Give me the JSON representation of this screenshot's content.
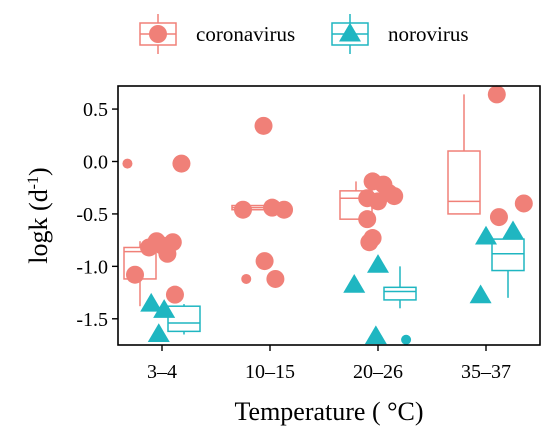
{
  "chart_data": {
    "type": "box-scatter",
    "categories": [
      "3–4",
      "10–15",
      "20–26",
      "35–37"
    ],
    "xlabel": "Temperature ( °C)",
    "ylabel": {
      "base": "logk (d",
      "sup": "-1",
      "end": ")"
    },
    "ylim": [
      -1.75,
      0.72
    ],
    "yticks": [
      0.5,
      0.0,
      -0.5,
      -1.0,
      -1.5
    ],
    "ytick_labels": [
      "0.5",
      "0.0",
      "-0.5",
      "-1.0",
      "-1.5"
    ],
    "grid": false,
    "legend_position": "top",
    "series": [
      {
        "name": "coronavirus",
        "color": "#f08078",
        "marker": "circle",
        "boxes": [
          {
            "category": "3–4",
            "min": -1.38,
            "q1": -1.12,
            "median": -0.86,
            "q3": -0.82,
            "max": -0.76
          },
          {
            "category": "10–15",
            "min": -0.46,
            "q1": -0.46,
            "median": -0.44,
            "q3": -0.42,
            "max": -0.42
          },
          {
            "category": "20–26",
            "min": -0.55,
            "q1": -0.55,
            "median": -0.35,
            "q3": -0.28,
            "max": -0.19
          },
          {
            "category": "35–37",
            "min": -0.5,
            "q1": -0.5,
            "median": -0.38,
            "q3": 0.1,
            "max": 0.64
          }
        ],
        "points": [
          {
            "category": "3–4",
            "offset": -0.32,
            "y": -0.02,
            "size": 5
          },
          {
            "category": "3–4",
            "offset": 0.18,
            "y": -0.02,
            "size": 9
          },
          {
            "category": "3–4",
            "offset": -0.05,
            "y": -0.76,
            "size": 9
          },
          {
            "category": "3–4",
            "offset": 0.1,
            "y": -0.77,
            "size": 9
          },
          {
            "category": "3–4",
            "offset": 0.0,
            "y": -0.8,
            "size": 9
          },
          {
            "category": "3–4",
            "offset": -0.12,
            "y": -0.82,
            "size": 9
          },
          {
            "category": "3–4",
            "offset": 0.05,
            "y": -0.88,
            "size": 9
          },
          {
            "category": "3–4",
            "offset": -0.25,
            "y": -1.08,
            "size": 9
          },
          {
            "category": "3–4",
            "offset": 0.12,
            "y": -1.27,
            "size": 9
          },
          {
            "category": "10–15",
            "offset": -0.06,
            "y": 0.34,
            "size": 9
          },
          {
            "category": "10–15",
            "offset": -0.25,
            "y": -0.46,
            "size": 9
          },
          {
            "category": "10–15",
            "offset": 0.02,
            "y": -0.44,
            "size": 9
          },
          {
            "category": "10–15",
            "offset": 0.13,
            "y": -0.46,
            "size": 9
          },
          {
            "category": "10–15",
            "offset": -0.05,
            "y": -0.95,
            "size": 9
          },
          {
            "category": "10–15",
            "offset": -0.22,
            "y": -1.12,
            "size": 5
          },
          {
            "category": "10–15",
            "offset": 0.05,
            "y": -1.12,
            "size": 9
          },
          {
            "category": "20–26",
            "offset": -0.05,
            "y": -0.19,
            "size": 9
          },
          {
            "category": "20–26",
            "offset": 0.05,
            "y": -0.22,
            "size": 9
          },
          {
            "category": "20–26",
            "offset": 0.1,
            "y": -0.3,
            "size": 9
          },
          {
            "category": "20–26",
            "offset": -0.1,
            "y": -0.35,
            "size": 9
          },
          {
            "category": "20–26",
            "offset": 0.15,
            "y": -0.33,
            "size": 9
          },
          {
            "category": "20–26",
            "offset": 0.0,
            "y": -0.38,
            "size": 9
          },
          {
            "category": "20–26",
            "offset": -0.1,
            "y": -0.55,
            "size": 9
          },
          {
            "category": "20–26",
            "offset": -0.05,
            "y": -0.73,
            "size": 9
          },
          {
            "category": "20–26",
            "offset": -0.08,
            "y": -0.77,
            "size": 9
          },
          {
            "category": "35–37",
            "offset": 0.1,
            "y": 0.64,
            "size": 9
          },
          {
            "category": "35–37",
            "offset": 0.12,
            "y": -0.53,
            "size": 9
          },
          {
            "category": "35–37",
            "offset": 0.35,
            "y": -0.4,
            "size": 9
          }
        ]
      },
      {
        "name": "norovirus",
        "color": "#1fb6c1",
        "marker": "triangle",
        "boxes": [
          {
            "category": "3–4",
            "min": -1.65,
            "q1": -1.62,
            "median": -1.54,
            "q3": -1.38,
            "max": -1.36
          },
          {
            "category": "20–26",
            "min": -1.4,
            "q1": -1.32,
            "median": -1.24,
            "q3": -1.2,
            "max": -1.0
          },
          {
            "category": "35–37",
            "min": -1.3,
            "q1": -1.04,
            "median": -0.88,
            "q3": -0.74,
            "max": -0.7
          }
        ],
        "points": [
          {
            "category": "3–4",
            "offset": -0.1,
            "y": -1.36,
            "size": 11
          },
          {
            "category": "3–4",
            "offset": 0.02,
            "y": -1.42,
            "size": 11
          },
          {
            "category": "3–4",
            "offset": -0.03,
            "y": -1.65,
            "size": 11
          },
          {
            "category": "20–26",
            "offset": -0.22,
            "y": -1.18,
            "size": 11
          },
          {
            "category": "20–26",
            "offset": 0.0,
            "y": -0.99,
            "size": 11
          },
          {
            "category": "20–26",
            "offset": -0.02,
            "y": -1.67,
            "size": 11
          },
          {
            "category": "20–26",
            "offset": 0.26,
            "y": -1.7,
            "size": 5
          },
          {
            "category": "35–37",
            "offset": -0.05,
            "y": -1.28,
            "size": 11
          },
          {
            "category": "35–37",
            "offset": 0.0,
            "y": -0.72,
            "size": 11
          },
          {
            "category": "35–37",
            "offset": 0.25,
            "y": -0.67,
            "size": 11
          }
        ]
      }
    ]
  }
}
